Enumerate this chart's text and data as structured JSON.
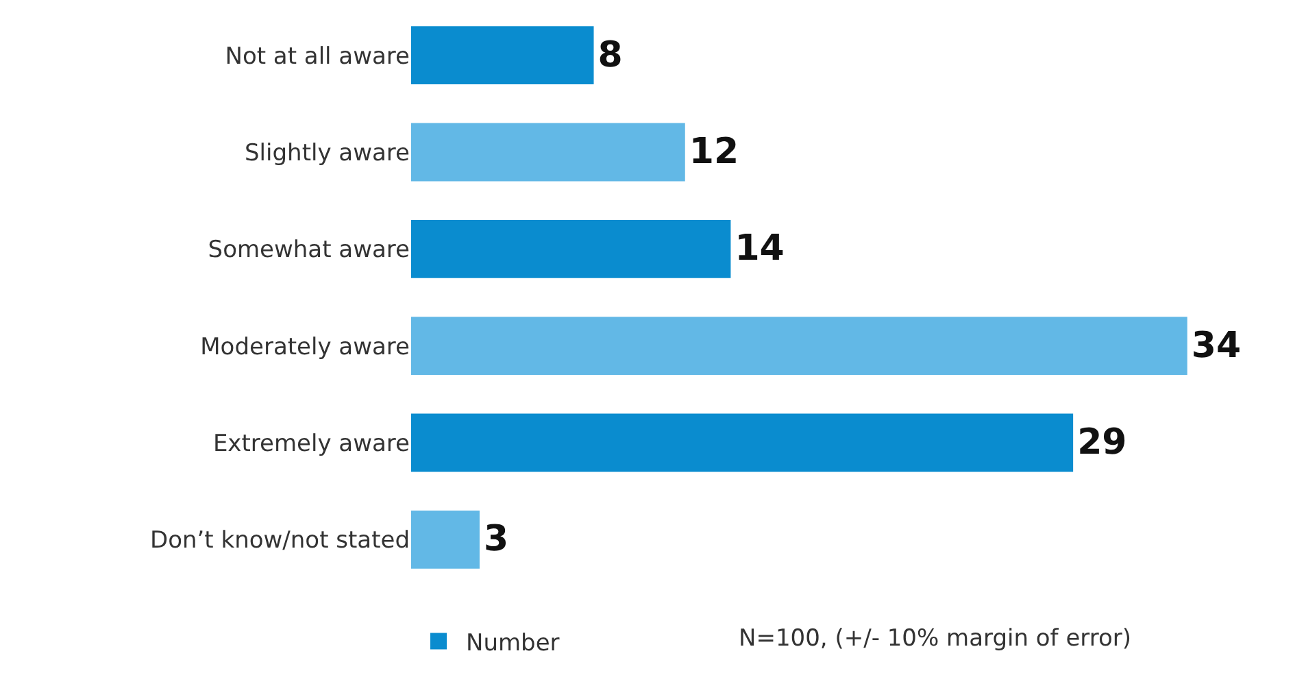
{
  "chart_data": {
    "type": "bar",
    "orientation": "horizontal",
    "categories": [
      "Not at all aware",
      "Slightly aware",
      "Somewhat aware",
      "Moderately aware",
      "Extremely aware",
      "Don’t know/not stated"
    ],
    "series": [
      {
        "name": "Number",
        "values": [
          8,
          12,
          14,
          34,
          29,
          3
        ],
        "colors": [
          "#0a8ccf",
          "#62b8e6",
          "#0a8ccf",
          "#62b8e6",
          "#0a8ccf",
          "#62b8e6"
        ]
      }
    ],
    "data_labels": true,
    "legend": "bottom",
    "annotations": [
      "N=100, (+/- 10% margin of error)"
    ]
  }
}
